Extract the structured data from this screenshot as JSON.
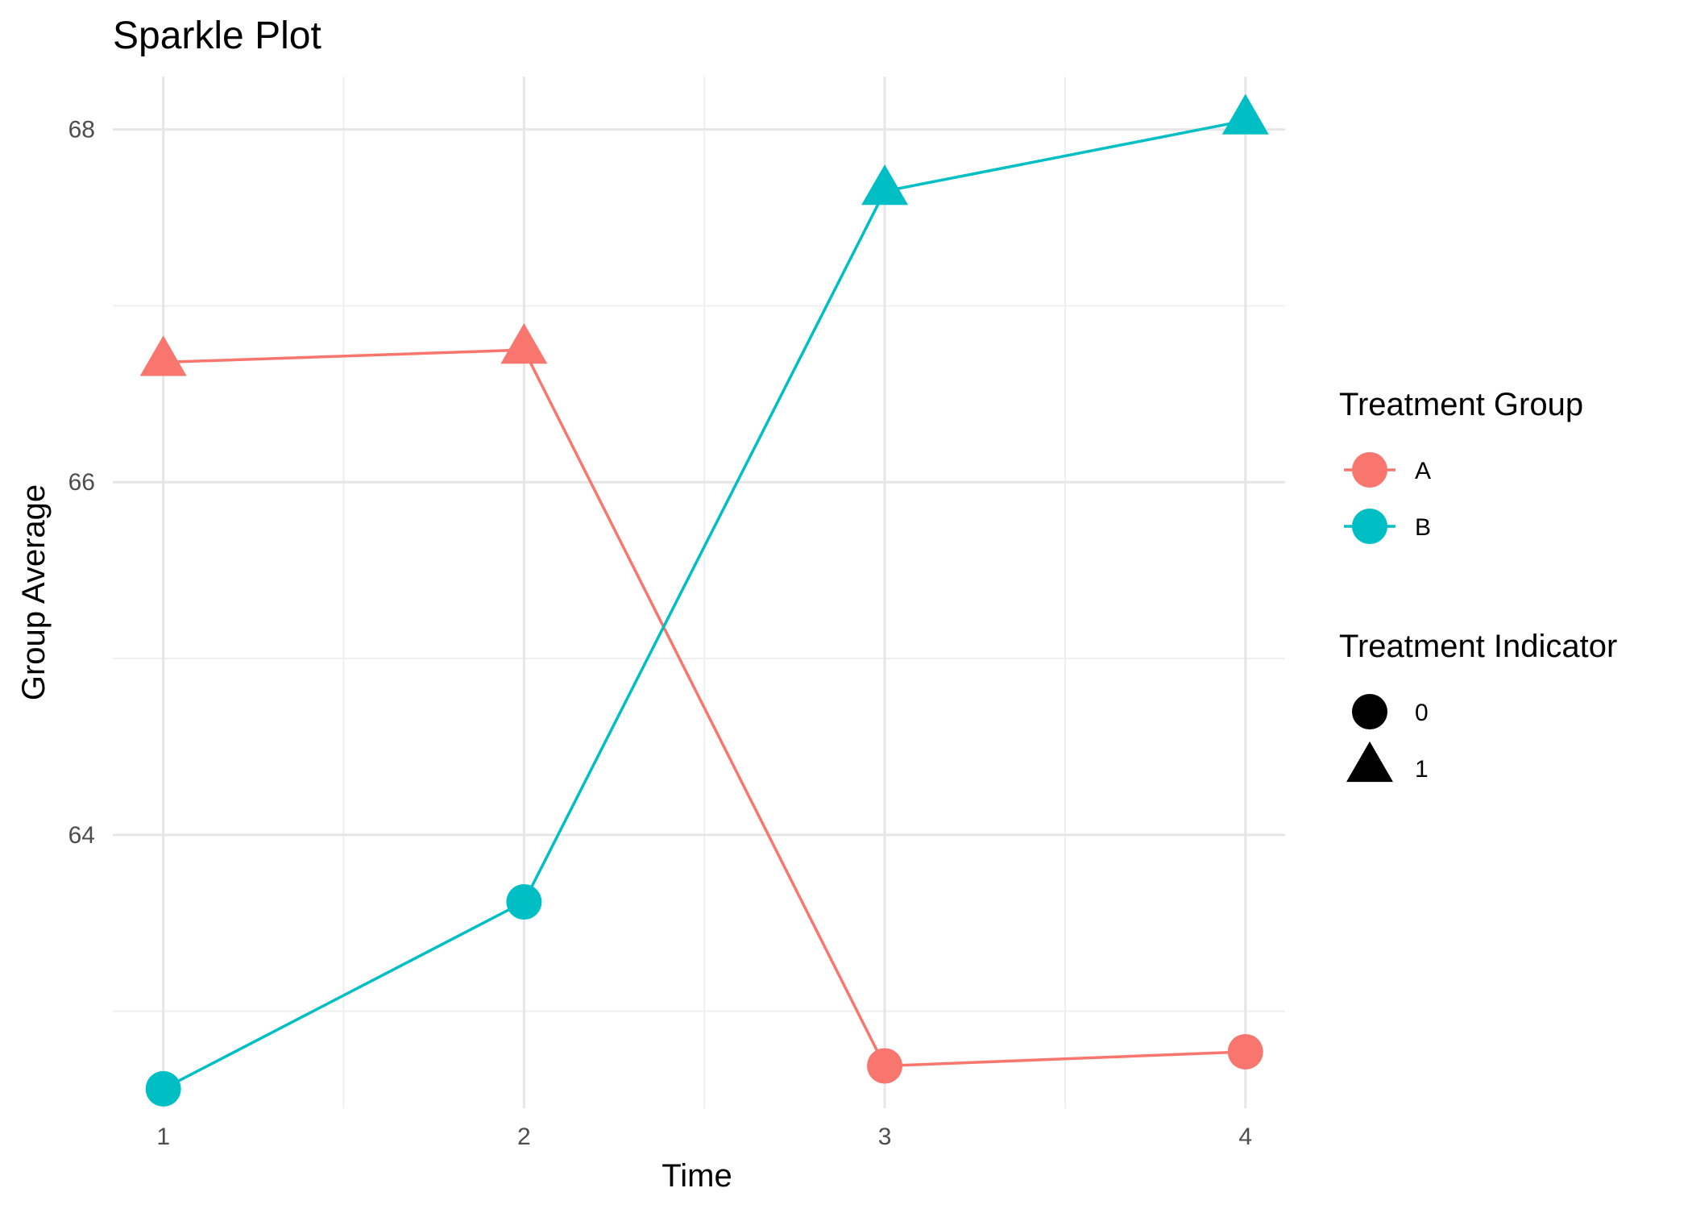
{
  "chart_data": {
    "type": "line",
    "title": "Sparkle Plot",
    "xlabel": "Time",
    "ylabel": "Group Average",
    "x": [
      1,
      2,
      3,
      4
    ],
    "xlim": [
      0.86,
      4.11
    ],
    "ylim": [
      62.45,
      68.3
    ],
    "x_ticks": [
      1,
      2,
      3,
      4
    ],
    "y_ticks": [
      64,
      66,
      68
    ],
    "grid": true,
    "legend_position": "right",
    "series": [
      {
        "name": "A",
        "color": "#F8766D",
        "values": [
          66.68,
          66.75,
          62.69,
          62.77
        ],
        "treatment": [
          1,
          1,
          0,
          0
        ]
      },
      {
        "name": "B",
        "color": "#00BFC4",
        "values": [
          62.56,
          63.62,
          67.65,
          68.05
        ],
        "treatment": [
          0,
          0,
          1,
          1
        ]
      }
    ],
    "legends": {
      "group": {
        "title": "Treatment Group",
        "items": [
          {
            "label": "A",
            "color": "#F8766D"
          },
          {
            "label": "B",
            "color": "#00BFC4"
          }
        ]
      },
      "indicator": {
        "title": "Treatment Indicator",
        "items": [
          {
            "label": "0",
            "shape": "circle-icon"
          },
          {
            "label": "1",
            "shape": "triangle-icon"
          }
        ]
      }
    }
  }
}
